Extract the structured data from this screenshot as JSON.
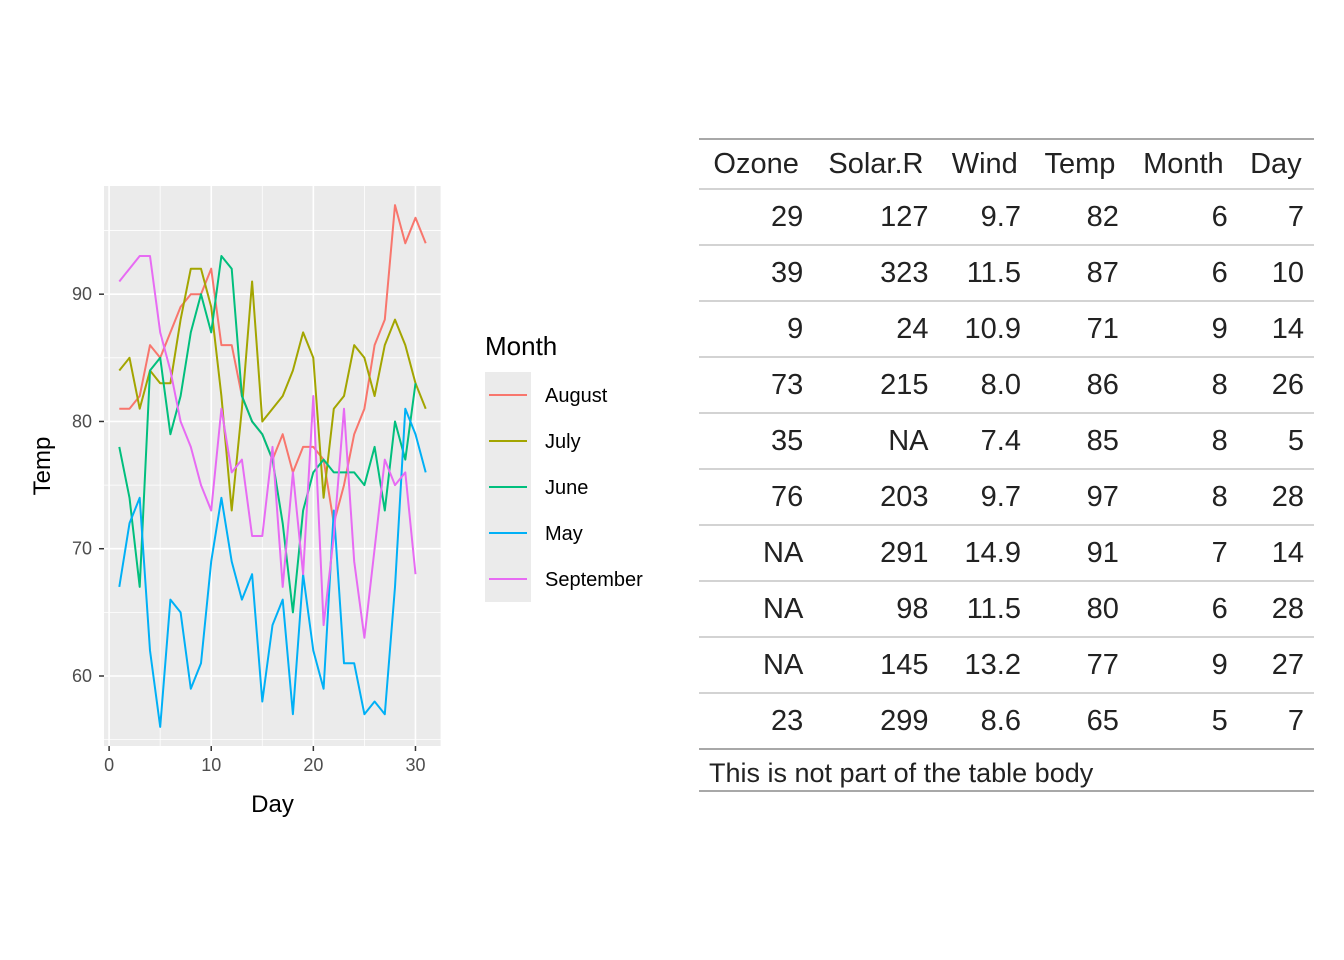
{
  "chart_data": {
    "type": "line",
    "xlabel": "Day",
    "ylabel": "Temp",
    "xlim": [
      -0.5,
      32.5
    ],
    "ylim": [
      54.5,
      98.5
    ],
    "x_ticks": [
      0,
      10,
      20,
      30
    ],
    "y_ticks": [
      60,
      70,
      80,
      90
    ],
    "grid": true,
    "legend_title": "Month",
    "legend_position": "right",
    "series": [
      {
        "name": "August",
        "color": "#F8766D",
        "x": [
          1,
          2,
          3,
          4,
          5,
          6,
          7,
          8,
          9,
          10,
          11,
          12,
          13,
          14,
          15,
          16,
          17,
          18,
          19,
          20,
          21,
          22,
          23,
          24,
          25,
          26,
          27,
          28,
          29,
          30,
          31
        ],
        "y": [
          81,
          81,
          82,
          86,
          85,
          87,
          89,
          90,
          90,
          92,
          86,
          86,
          82,
          80,
          79,
          77,
          79,
          76,
          78,
          78,
          77,
          72,
          75,
          79,
          81,
          86,
          88,
          97,
          94,
          96,
          94
        ]
      },
      {
        "name": "July",
        "color": "#A3A500",
        "x": [
          1,
          2,
          3,
          4,
          5,
          6,
          7,
          8,
          9,
          10,
          11,
          12,
          13,
          14,
          15,
          16,
          17,
          18,
          19,
          20,
          21,
          22,
          23,
          24,
          25,
          26,
          27,
          28,
          29,
          30,
          31
        ],
        "y": [
          84,
          85,
          81,
          84,
          83,
          83,
          88,
          92,
          92,
          89,
          82,
          73,
          81,
          91,
          80,
          81,
          82,
          84,
          87,
          85,
          74,
          81,
          82,
          86,
          85,
          82,
          86,
          88,
          86,
          83,
          81
        ]
      },
      {
        "name": "June",
        "color": "#00BF7D",
        "x": [
          1,
          2,
          3,
          4,
          5,
          6,
          7,
          8,
          9,
          10,
          11,
          12,
          13,
          14,
          15,
          16,
          17,
          18,
          19,
          20,
          21,
          22,
          23,
          24,
          25,
          26,
          27,
          28,
          29,
          30
        ],
        "y": [
          78,
          74,
          67,
          84,
          85,
          79,
          82,
          87,
          90,
          87,
          93,
          92,
          82,
          80,
          79,
          77,
          72,
          65,
          73,
          76,
          77,
          76,
          76,
          76,
          75,
          78,
          73,
          80,
          77,
          83
        ]
      },
      {
        "name": "May",
        "color": "#00B0F6",
        "x": [
          1,
          2,
          3,
          4,
          5,
          6,
          7,
          8,
          9,
          10,
          11,
          12,
          13,
          14,
          15,
          16,
          17,
          18,
          19,
          20,
          21,
          22,
          23,
          24,
          25,
          26,
          27,
          28,
          29,
          30,
          31
        ],
        "y": [
          67,
          72,
          74,
          62,
          56,
          66,
          65,
          59,
          61,
          69,
          74,
          69,
          66,
          68,
          58,
          64,
          66,
          57,
          68,
          62,
          59,
          73,
          61,
          61,
          57,
          58,
          57,
          67,
          81,
          79,
          76
        ]
      },
      {
        "name": "September",
        "color": "#E76BF3",
        "x": [
          1,
          2,
          3,
          4,
          5,
          6,
          7,
          8,
          9,
          10,
          11,
          12,
          13,
          14,
          15,
          16,
          17,
          18,
          19,
          20,
          21,
          22,
          23,
          24,
          25,
          26,
          27,
          28,
          29,
          30
        ],
        "y": [
          91,
          92,
          93,
          93,
          87,
          84,
          80,
          78,
          75,
          73,
          81,
          76,
          77,
          71,
          71,
          78,
          67,
          76,
          68,
          82,
          64,
          71,
          81,
          69,
          63,
          70,
          77,
          75,
          76,
          68
        ]
      }
    ]
  },
  "table": {
    "headers": [
      "Ozone",
      "Solar.R",
      "Wind",
      "Temp",
      "Month",
      "Day"
    ],
    "rows": [
      [
        "29",
        "127",
        "9.7",
        "82",
        "6",
        "7"
      ],
      [
        "39",
        "323",
        "11.5",
        "87",
        "6",
        "10"
      ],
      [
        "9",
        "24",
        "10.9",
        "71",
        "9",
        "14"
      ],
      [
        "73",
        "215",
        "8.0",
        "86",
        "8",
        "26"
      ],
      [
        "35",
        "NA",
        "7.4",
        "85",
        "8",
        "5"
      ],
      [
        "76",
        "203",
        "9.7",
        "97",
        "8",
        "28"
      ],
      [
        "NA",
        "291",
        "14.9",
        "91",
        "7",
        "14"
      ],
      [
        "NA",
        "98",
        "11.5",
        "80",
        "6",
        "28"
      ],
      [
        "NA",
        "145",
        "13.2",
        "77",
        "9",
        "27"
      ],
      [
        "23",
        "299",
        "8.6",
        "65",
        "5",
        "7"
      ]
    ],
    "footer": "This is not part of the table body"
  }
}
